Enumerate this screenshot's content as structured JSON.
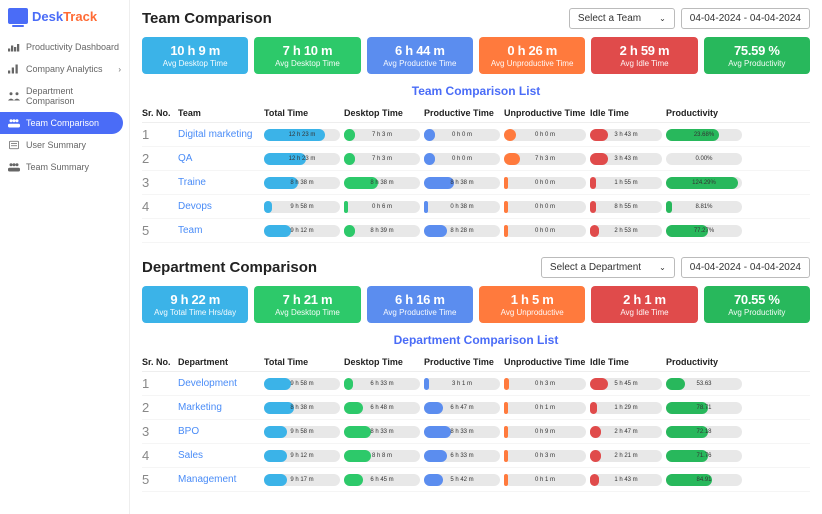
{
  "logo": {
    "desk": "Desk",
    "track": "Track"
  },
  "sidebar": {
    "items": [
      {
        "label": "Productivity Dashboard",
        "active": false,
        "chevron": false
      },
      {
        "label": "Company Analytics",
        "active": false,
        "chevron": true
      },
      {
        "label": "Department Comparison",
        "active": false,
        "chevron": false
      },
      {
        "label": "Team Comparison",
        "active": true,
        "chevron": false
      },
      {
        "label": "User Summary",
        "active": false,
        "chevron": false
      },
      {
        "label": "Team Summary",
        "active": false,
        "chevron": false
      }
    ]
  },
  "colors": {
    "totalTime": "#3bb3e8",
    "desktopTime": "#2dc96a",
    "productiveTime": "#5b8def",
    "unproductiveTime": "#ff7a3d",
    "idleTime": "#e04b4b",
    "productivity": "#28b85c",
    "pillBg": "#e8e8e8"
  },
  "sections": [
    {
      "key": "team",
      "title": "Team Comparison",
      "selectLabel": "Select a Team",
      "dateRange": "04-04-2024 - 04-04-2024",
      "listTitle": "Team Comparison List",
      "nameHeader": "Team",
      "metrics": [
        {
          "value": "10 h 9 m",
          "label": "Avg Desktop Time",
          "color": "#3bb3e8"
        },
        {
          "value": "7 h 10 m",
          "label": "Avg Desktop Time",
          "color": "#2dc96a"
        },
        {
          "value": "6 h 44 m",
          "label": "Avg Productive Time",
          "color": "#5b8def"
        },
        {
          "value": "0 h 26 m",
          "label": "Avg Unproductive Time",
          "color": "#ff7a3d"
        },
        {
          "value": "2 h 59 m",
          "label": "Avg Idle Time",
          "color": "#e04b4b"
        },
        {
          "value": "75.59 %",
          "label": "Avg Productivity",
          "color": "#28b85c"
        }
      ],
      "columns": [
        "Sr. No.",
        "Team",
        "Total Time",
        "Desktop Time",
        "Productive Time",
        "Unproductive Time",
        "Idle Time",
        "Productivity"
      ],
      "rows": [
        {
          "sr": "1",
          "name": "Digital marketing",
          "cells": [
            {
              "text": "12 h 23 m",
              "fill": 80,
              "color": "#3bb3e8",
              "hatch": true
            },
            {
              "text": "7 h 3 m",
              "fill": 15,
              "color": "#2dc96a",
              "hatch": false
            },
            {
              "text": "0 h 0 m",
              "fill": 15,
              "color": "#5b8def",
              "hatch": false
            },
            {
              "text": "0 h 0 m",
              "fill": 15,
              "color": "#ff7a3d",
              "hatch": false
            },
            {
              "text": "3 h 43 m",
              "fill": 25,
              "color": "#e04b4b",
              "hatch": false
            },
            {
              "text": "23.68%",
              "fill": 70,
              "color": "#28b85c",
              "hatch": true
            }
          ]
        },
        {
          "sr": "2",
          "name": "QA",
          "cells": [
            {
              "text": "12 h 23 m",
              "fill": 55,
              "color": "#3bb3e8",
              "hatch": true
            },
            {
              "text": "7 h 3 m",
              "fill": 15,
              "color": "#2dc96a",
              "hatch": false
            },
            {
              "text": "0 h 0 m",
              "fill": 15,
              "color": "#5b8def",
              "hatch": false
            },
            {
              "text": "7 h 3 m",
              "fill": 20,
              "color": "#ff7a3d",
              "hatch": false
            },
            {
              "text": "3 h 43 m",
              "fill": 25,
              "color": "#e04b4b",
              "hatch": false
            },
            {
              "text": "0.00%",
              "fill": 0,
              "color": "#28b85c",
              "hatch": false
            }
          ]
        },
        {
          "sr": "3",
          "name": "Traine",
          "cells": [
            {
              "text": "8 h 38 m",
              "fill": 45,
              "color": "#3bb3e8",
              "hatch": true
            },
            {
              "text": "8 h 38 m",
              "fill": 45,
              "color": "#2dc96a",
              "hatch": true
            },
            {
              "text": "8 h 38 m",
              "fill": 40,
              "color": "#5b8def",
              "hatch": false
            },
            {
              "text": "0 h 0 m",
              "fill": 5,
              "color": "#ff7a3d",
              "hatch": false
            },
            {
              "text": "1 h 55 m",
              "fill": 8,
              "color": "#e04b4b",
              "hatch": false
            },
            {
              "text": "124.29%",
              "fill": 95,
              "color": "#28b85c",
              "hatch": true
            }
          ]
        },
        {
          "sr": "4",
          "name": "Devops",
          "cells": [
            {
              "text": "9 h 58 m",
              "fill": 10,
              "color": "#3bb3e8",
              "hatch": false
            },
            {
              "text": "0 h 6 m",
              "fill": 5,
              "color": "#2dc96a",
              "hatch": false
            },
            {
              "text": "0 h 38 m",
              "fill": 5,
              "color": "#5b8def",
              "hatch": false
            },
            {
              "text": "0 h 0 m",
              "fill": 5,
              "color": "#ff7a3d",
              "hatch": false
            },
            {
              "text": "8 h 55 m",
              "fill": 8,
              "color": "#e04b4b",
              "hatch": false
            },
            {
              "text": "8.81%",
              "fill": 8,
              "color": "#28b85c",
              "hatch": false
            }
          ]
        },
        {
          "sr": "5",
          "name": "Team",
          "cells": [
            {
              "text": "9 h 12 m",
              "fill": 35,
              "color": "#3bb3e8",
              "hatch": true
            },
            {
              "text": "8 h 39 m",
              "fill": 15,
              "color": "#2dc96a",
              "hatch": false
            },
            {
              "text": "8 h 28 m",
              "fill": 30,
              "color": "#5b8def",
              "hatch": false
            },
            {
              "text": "0 h 0 m",
              "fill": 5,
              "color": "#ff7a3d",
              "hatch": false
            },
            {
              "text": "2 h 53 m",
              "fill": 12,
              "color": "#e04b4b",
              "hatch": false
            },
            {
              "text": "77.27%",
              "fill": 55,
              "color": "#28b85c",
              "hatch": true
            }
          ]
        }
      ]
    },
    {
      "key": "department",
      "title": "Department Comparison",
      "selectLabel": "Select a Department",
      "dateRange": "04-04-2024 - 04-04-2024",
      "listTitle": "Department Comparison List",
      "nameHeader": "Department",
      "metrics": [
        {
          "value": "9 h 22 m",
          "label": "Avg Total Time Hrs/day",
          "color": "#3bb3e8"
        },
        {
          "value": "7 h 21 m",
          "label": "Avg Desktop Time",
          "color": "#2dc96a"
        },
        {
          "value": "6 h 16 m",
          "label": "Avg Productive Time",
          "color": "#5b8def"
        },
        {
          "value": "1 h 5 m",
          "label": "Avg Unproductive",
          "color": "#ff7a3d"
        },
        {
          "value": "2 h 1 m",
          "label": "Avg Idle Time",
          "color": "#e04b4b"
        },
        {
          "value": "70.55 %",
          "label": "Avg Productivity",
          "color": "#28b85c"
        }
      ],
      "columns": [
        "Sr. No.",
        "Department",
        "Total Time",
        "Desktop Time",
        "Productive Time",
        "Unproductive Time",
        "Idle Time",
        "Productivity"
      ],
      "rows": [
        {
          "sr": "1",
          "name": "Development",
          "cells": [
            {
              "text": "9 h 58 m",
              "fill": 35,
              "color": "#3bb3e8",
              "hatch": true
            },
            {
              "text": "6 h 33 m",
              "fill": 12,
              "color": "#2dc96a",
              "hatch": false
            },
            {
              "text": "3 h 1 m",
              "fill": 6,
              "color": "#5b8def",
              "hatch": false
            },
            {
              "text": "0 h 3 m",
              "fill": 6,
              "color": "#ff7a3d",
              "hatch": false
            },
            {
              "text": "5 h 45 m",
              "fill": 25,
              "color": "#e04b4b",
              "hatch": true
            },
            {
              "text": "53.63",
              "fill": 25,
              "color": "#28b85c",
              "hatch": false
            }
          ]
        },
        {
          "sr": "2",
          "name": "Marketing",
          "cells": [
            {
              "text": "8 h 38 m",
              "fill": 40,
              "color": "#3bb3e8",
              "hatch": true
            },
            {
              "text": "6 h 48 m",
              "fill": 25,
              "color": "#2dc96a",
              "hatch": true
            },
            {
              "text": "6 h 47 m",
              "fill": 25,
              "color": "#5b8def",
              "hatch": true
            },
            {
              "text": "0 h 1 m",
              "fill": 5,
              "color": "#ff7a3d",
              "hatch": false
            },
            {
              "text": "1 h 29 m",
              "fill": 10,
              "color": "#e04b4b",
              "hatch": false
            },
            {
              "text": "78.71",
              "fill": 55,
              "color": "#28b85c",
              "hatch": true
            }
          ]
        },
        {
          "sr": "3",
          "name": "BPO",
          "cells": [
            {
              "text": "9 h 58 m",
              "fill": 30,
              "color": "#3bb3e8",
              "hatch": true
            },
            {
              "text": "8 h 33 m",
              "fill": 35,
              "color": "#2dc96a",
              "hatch": true
            },
            {
              "text": "8 h 33 m",
              "fill": 35,
              "color": "#5b8def",
              "hatch": true
            },
            {
              "text": "0 h 9 m",
              "fill": 5,
              "color": "#ff7a3d",
              "hatch": false
            },
            {
              "text": "2 h 47 m",
              "fill": 15,
              "color": "#e04b4b",
              "hatch": true
            },
            {
              "text": "72.18",
              "fill": 55,
              "color": "#28b85c",
              "hatch": true
            }
          ]
        },
        {
          "sr": "4",
          "name": "Sales",
          "cells": [
            {
              "text": "9 h 12 m",
              "fill": 30,
              "color": "#3bb3e8",
              "hatch": true
            },
            {
              "text": "8 h 8 m",
              "fill": 35,
              "color": "#2dc96a",
              "hatch": true
            },
            {
              "text": "6 h 33 m",
              "fill": 30,
              "color": "#5b8def",
              "hatch": true
            },
            {
              "text": "0 h 3 m",
              "fill": 5,
              "color": "#ff7a3d",
              "hatch": false
            },
            {
              "text": "2 h 21 m",
              "fill": 15,
              "color": "#e04b4b",
              "hatch": true
            },
            {
              "text": "71.76",
              "fill": 55,
              "color": "#28b85c",
              "hatch": true
            }
          ]
        },
        {
          "sr": "5",
          "name": "Management",
          "cells": [
            {
              "text": "9 h 17 m",
              "fill": 30,
              "color": "#3bb3e8",
              "hatch": true
            },
            {
              "text": "6 h 45 m",
              "fill": 25,
              "color": "#2dc96a",
              "hatch": true
            },
            {
              "text": "5 h 42 m",
              "fill": 25,
              "color": "#5b8def",
              "hatch": true
            },
            {
              "text": "0 h 1 m",
              "fill": 5,
              "color": "#ff7a3d",
              "hatch": false
            },
            {
              "text": "1 h 43 m",
              "fill": 12,
              "color": "#e04b4b",
              "hatch": false
            },
            {
              "text": "84.91",
              "fill": 60,
              "color": "#28b85c",
              "hatch": true
            }
          ]
        }
      ]
    }
  ]
}
